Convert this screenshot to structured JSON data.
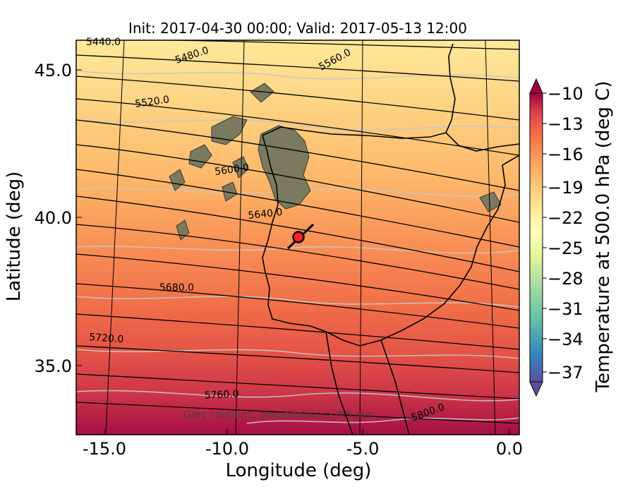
{
  "title": "Init: 2017-04-30 00:00; Valid: 2017-05-13 12:00",
  "xlabel": "Longitude (deg)",
  "ylabel": "Latitude (deg)",
  "colorbar_label": "Temperature at 500.0 hPa (deg C)",
  "note": "Grey contours: precipitation ≥ 0.5 mm",
  "x_ticks": [
    "-15.0",
    "-10.0",
    "-5.0",
    "0.0"
  ],
  "y_ticks": [
    "45.0",
    "40.0",
    "35.0"
  ],
  "colorbar_ticks": [
    "−10",
    "−13",
    "−16",
    "−19",
    "−22",
    "−25",
    "−28",
    "−31",
    "−34",
    "−37"
  ],
  "contour_labels": [
    "5440.0",
    "5480.0",
    "5520.0",
    "5560.0",
    "5600.0",
    "5640.0",
    "5680.0",
    "5720.0",
    "5760.0",
    "5800.0"
  ],
  "chart_data": {
    "type": "heatmap",
    "title": "Init: 2017-04-30 00:00; Valid: 2017-05-13 12:00",
    "xlabel": "Longitude (deg)",
    "ylabel": "Latitude (deg)",
    "xlim": [
      -16,
      0
    ],
    "ylim": [
      33,
      46
    ],
    "colorbar": {
      "label": "Temperature at 500.0 hPa (deg C)",
      "min": -37,
      "max": -10,
      "extend": "both",
      "ticks": [
        -10,
        -13,
        -16,
        -19,
        -22,
        -25,
        -28,
        -31,
        -34,
        -37
      ],
      "colormap": "Spectral_r"
    },
    "geopotential_contours_m": [
      5440,
      5480,
      5520,
      5560,
      5600,
      5640,
      5680,
      5720,
      5760,
      5800
    ],
    "temperature_field_deg_c": {
      "north_edge": -23,
      "south_edge": -11
    },
    "marker": {
      "lon": -7.6,
      "lat": 39.3,
      "color": "#ff2020"
    },
    "grid": true
  },
  "colors": {
    "cold": "#fee99a",
    "warm": "#a50f43",
    "marker": "#ff2020",
    "precip_contour": "#bdbdbd"
  }
}
